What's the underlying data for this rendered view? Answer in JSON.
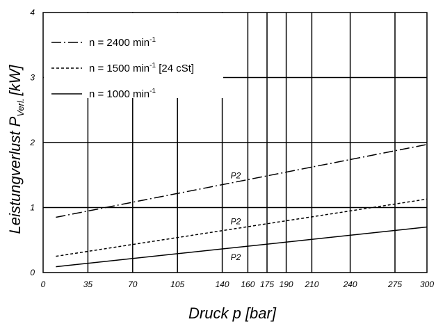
{
  "chart_data": {
    "type": "line",
    "xlabel": "Druck p [bar]",
    "ylabel_main": "Leistungverlust P",
    "ylabel_sub": "Verl.",
    "ylabel_unit": "[kW]",
    "xlim": [
      0,
      300
    ],
    "ylim": [
      0,
      4
    ],
    "x_ticks": [
      0,
      35,
      70,
      105,
      140,
      160,
      175,
      190,
      210,
      240,
      275,
      300
    ],
    "y_ticks": [
      0,
      1,
      2,
      3,
      4
    ],
    "grid": true,
    "legend_position": "top-left",
    "series": [
      {
        "name": "n  =  2400 min",
        "name_sup": "-1",
        "name_suffix": "",
        "dash": "dash-dot",
        "label": "P2",
        "x": [
          10,
          300
        ],
        "y": [
          0.85,
          1.97
        ]
      },
      {
        "name": "n  =  1500 min",
        "name_sup": "-1",
        "name_suffix": " [24 cSt]",
        "dash": "dashed",
        "label": "P2",
        "x": [
          10,
          300
        ],
        "y": [
          0.25,
          1.13
        ]
      },
      {
        "name": "n  =  1000 min",
        "name_sup": "-1",
        "name_suffix": "",
        "dash": "solid",
        "label": "P2",
        "x": [
          10,
          300
        ],
        "y": [
          0.09,
          0.7
        ]
      }
    ]
  }
}
